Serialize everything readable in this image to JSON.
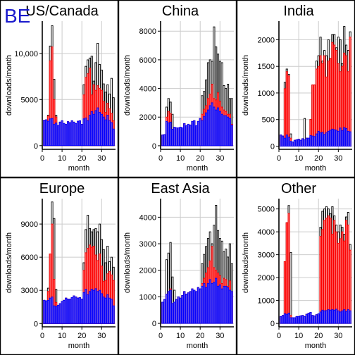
{
  "badge": "BE",
  "chart_data": [
    {
      "type": "bar",
      "title": "US/Canada",
      "xlabel": "month",
      "ylabel": "downloads/month",
      "xlim": [
        0,
        37
      ],
      "ylim": [
        -400,
        13500
      ],
      "xticks": [
        0,
        10,
        20,
        30
      ],
      "yticks": [
        0,
        5000,
        10000
      ],
      "ytick_labels": [
        "0",
        "5000",
        "10,000"
      ],
      "series": [
        {
          "name": "",
          "color": "#0000ff",
          "values": [
            2750,
            2800,
            2650,
            2900,
            2950,
            2300,
            2450,
            2200,
            2550,
            2700,
            2400,
            2300,
            2600,
            2500,
            2700,
            2550,
            2400,
            2650,
            2700,
            2300,
            2900,
            3000,
            2700,
            3300,
            3700,
            3400,
            3800,
            4100,
            3600,
            3400,
            3100,
            2800,
            3300,
            2700,
            2500,
            1800
          ]
        },
        {
          "name": "",
          "color": "#ff0000",
          "values": [
            2750,
            2800,
            3200,
            9200,
            10700,
            5000,
            3100,
            2200,
            2550,
            2700,
            2400,
            2300,
            2600,
            2500,
            2700,
            2550,
            2400,
            2650,
            2700,
            2300,
            5500,
            7400,
            7800,
            8400,
            5500,
            6600,
            6000,
            6500,
            6200,
            6000,
            4800,
            3600,
            4600,
            4000,
            3500,
            2700
          ]
        },
        {
          "name": "",
          "color": "#000000",
          "values": [
            2750,
            2800,
            3300,
            10800,
            13000,
            7200,
            3300,
            2200,
            2550,
            2700,
            2400,
            2300,
            2600,
            2500,
            2700,
            2550,
            2400,
            2650,
            2700,
            2300,
            6600,
            8600,
            9300,
            9500,
            9700,
            7000,
            9000,
            11100,
            8800,
            8200,
            6700,
            5800,
            6600,
            5600,
            7300,
            5200
          ]
        }
      ]
    },
    {
      "type": "bar",
      "title": "China",
      "xlabel": "month",
      "ylabel": "downloads/month",
      "xlim": [
        0,
        37
      ],
      "ylim": [
        -250,
        8700
      ],
      "xticks": [
        0,
        10,
        20,
        30
      ],
      "yticks": [
        0,
        2000,
        4000,
        6000,
        8000
      ],
      "ytick_labels": [
        "0",
        "2000",
        "4000",
        "6000",
        "8000"
      ],
      "series": [
        {
          "name": "",
          "color": "#0000ff",
          "values": [
            750,
            780,
            1700,
            1600,
            1650,
            1150,
            1300,
            1250,
            1250,
            1300,
            1250,
            1550,
            1400,
            1500,
            1450,
            1700,
            1750,
            1400,
            1700,
            1900,
            1750,
            2050,
            2300,
            2500,
            2800,
            3000,
            2700,
            2500,
            2650,
            2400,
            2200,
            2100,
            2100,
            2000,
            1900,
            1450
          ]
        },
        {
          "name": "",
          "color": "#ff0000",
          "values": [
            750,
            780,
            2000,
            2400,
            2250,
            1150,
            1300,
            1250,
            1250,
            1300,
            1250,
            1550,
            1400,
            1500,
            1450,
            1700,
            1750,
            1400,
            1700,
            1900,
            2200,
            2550,
            2800,
            3300,
            3600,
            4300,
            3300,
            3200,
            3700,
            3100,
            2700,
            2500,
            2400,
            2200,
            2200,
            1500
          ]
        },
        {
          "name": "",
          "color": "#000000",
          "values": [
            750,
            780,
            2700,
            3300,
            3050,
            2200,
            1300,
            1250,
            1250,
            1300,
            1250,
            1550,
            1400,
            1500,
            1450,
            1700,
            1750,
            1400,
            1700,
            1900,
            3500,
            3800,
            4600,
            5800,
            6000,
            5900,
            8300,
            6900,
            6400,
            5900,
            5800,
            4200,
            4000,
            4300,
            3300,
            3300
          ]
        }
      ]
    },
    {
      "type": "bar",
      "title": "India",
      "xlabel": "month",
      "ylabel": "downloads/month",
      "xlim": [
        0,
        37
      ],
      "ylim": [
        -60,
        2350
      ],
      "xticks": [
        0,
        10,
        20,
        30
      ],
      "yticks": [
        0,
        500,
        1000,
        1500,
        2000
      ],
      "ytick_labels": [
        "0",
        "500",
        "1000",
        "1500",
        "2000"
      ],
      "series": [
        {
          "name": "",
          "color": "#0000ff",
          "values": [
            210,
            190,
            150,
            210,
            170,
            90,
            80,
            110,
            120,
            130,
            110,
            140,
            120,
            150,
            150,
            200,
            190,
            180,
            230,
            280,
            250,
            260,
            220,
            250,
            280,
            300,
            320,
            310,
            300,
            280,
            340,
            290,
            350,
            330,
            280,
            270
          ]
        },
        {
          "name": "",
          "color": "#ff0000",
          "values": [
            210,
            190,
            1080,
            1400,
            1320,
            150,
            80,
            110,
            120,
            130,
            110,
            140,
            120,
            150,
            150,
            500,
            1150,
            1150,
            1450,
            1500,
            1700,
            1550,
            1700,
            1300,
            1600,
            1650,
            1950,
            1900,
            1800,
            1550,
            1400,
            1500,
            1750,
            1700,
            1400,
            2050
          ]
        },
        {
          "name": "",
          "color": "#000000",
          "values": [
            210,
            190,
            1200,
            1450,
            1350,
            230,
            80,
            110,
            120,
            130,
            110,
            140,
            520,
            150,
            150,
            500,
            1150,
            1150,
            1600,
            1700,
            2050,
            1600,
            1800,
            1700,
            2000,
            1650,
            2100,
            2100,
            1850,
            2050,
            2000,
            1550,
            2250,
            1900,
            1800,
            2150
          ]
        }
      ]
    },
    {
      "type": "bar",
      "title": "Europe",
      "xlabel": "month",
      "ylabel": "downloads/month",
      "xlim": [
        0,
        37
      ],
      "ylim": [
        -300,
        11300
      ],
      "xticks": [
        0,
        10,
        20,
        30
      ],
      "yticks": [
        0,
        3000,
        6000,
        9000
      ],
      "ytick_labels": [
        "0",
        "3000",
        "6000",
        "9000"
      ],
      "series": [
        {
          "name": "",
          "color": "#0000ff",
          "values": [
            2100,
            2050,
            2100,
            2300,
            2400,
            1600,
            1550,
            1650,
            1800,
            2000,
            2100,
            2300,
            2200,
            2200,
            2350,
            2500,
            2400,
            2300,
            2350,
            2200,
            2800,
            3100,
            2600,
            2900,
            3100,
            3000,
            3150,
            2900,
            3000,
            2700,
            2400,
            2300,
            2600,
            2300,
            2200,
            1600
          ]
        },
        {
          "name": "",
          "color": "#ff0000",
          "values": [
            2100,
            2050,
            2900,
            6300,
            9000,
            4000,
            1900,
            1650,
            1800,
            2000,
            2100,
            2300,
            2200,
            2200,
            2350,
            2500,
            2400,
            2300,
            2350,
            2200,
            4800,
            6400,
            6800,
            7100,
            6900,
            7000,
            6200,
            5700,
            6300,
            5200,
            3800,
            3900,
            4500,
            4700,
            4400,
            3900
          ]
        },
        {
          "name": "",
          "color": "#000000",
          "values": [
            2100,
            2050,
            3200,
            6300,
            11000,
            9500,
            3100,
            1650,
            1800,
            2000,
            2100,
            2300,
            2200,
            2200,
            2350,
            2500,
            2400,
            2300,
            2350,
            2200,
            5500,
            8500,
            9800,
            8600,
            8300,
            8500,
            8600,
            8300,
            9000,
            7600,
            6700,
            5500,
            7000,
            5600,
            6000,
            5100
          ]
        }
      ]
    },
    {
      "type": "bar",
      "title": "East Asia",
      "xlabel": "month",
      "ylabel": "downloads/month",
      "xlim": [
        0,
        37
      ],
      "ylim": [
        -130,
        4700
      ],
      "xticks": [
        0,
        10,
        20,
        30
      ],
      "yticks": [
        0,
        1000,
        2000,
        3000,
        4000
      ],
      "ytick_labels": [
        "0",
        "1000",
        "2000",
        "3000",
        "4000"
      ],
      "series": [
        {
          "name": "",
          "color": "#0000ff",
          "values": [
            800,
            900,
            1100,
            1200,
            1250,
            750,
            800,
            900,
            1000,
            950,
            1050,
            1200,
            1100,
            1150,
            1200,
            1300,
            1250,
            1200,
            1350,
            1300,
            1400,
            1500,
            1350,
            1500,
            1650,
            1500,
            1550,
            1700,
            1400,
            1450,
            1300,
            1400,
            1400,
            1350,
            1250,
            1200
          ]
        },
        {
          "name": "",
          "color": "#ff0000",
          "values": [
            800,
            900,
            1100,
            1200,
            1300,
            750,
            800,
            900,
            1000,
            950,
            1050,
            1200,
            1100,
            1150,
            1200,
            1300,
            1250,
            1200,
            1350,
            1300,
            1500,
            1700,
            1900,
            2100,
            2350,
            2900,
            2100,
            2000,
            1900,
            1800,
            1500,
            1700,
            1650,
            1400,
            1600,
            1200
          ]
        },
        {
          "name": "",
          "color": "#000000",
          "values": [
            800,
            900,
            2400,
            2650,
            3050,
            1750,
            1250,
            900,
            1000,
            950,
            1050,
            1200,
            1100,
            1150,
            1200,
            1300,
            1250,
            1200,
            1350,
            1300,
            2250,
            2600,
            2900,
            3200,
            3450,
            3000,
            3700,
            4450,
            3500,
            3200,
            3100,
            2700,
            2800,
            2500,
            3000,
            2250
          ]
        }
      ]
    },
    {
      "type": "bar",
      "title": "Other",
      "xlabel": "month",
      "ylabel": "downloads/month",
      "xlim": [
        0,
        37
      ],
      "ylim": [
        -150,
        5450
      ],
      "xticks": [
        0,
        10,
        20,
        30
      ],
      "yticks": [
        0,
        1000,
        2000,
        3000,
        4000,
        5000
      ],
      "ytick_labels": [
        "0",
        "1000",
        "2000",
        "3000",
        "4000",
        "5000"
      ],
      "series": [
        {
          "name": "",
          "color": "#0000ff",
          "values": [
            300,
            350,
            420,
            400,
            450,
            250,
            250,
            250,
            300,
            300,
            330,
            350,
            300,
            400,
            450,
            480,
            350,
            320,
            380,
            420,
            500,
            580,
            550,
            560,
            600,
            580,
            600,
            580,
            620,
            550,
            500,
            550,
            600,
            520,
            600,
            550
          ]
        },
        {
          "name": "",
          "color": "#ff0000",
          "values": [
            300,
            350,
            2700,
            4400,
            4800,
            350,
            250,
            250,
            300,
            300,
            330,
            350,
            300,
            400,
            450,
            480,
            350,
            320,
            380,
            420,
            3800,
            4100,
            4500,
            4600,
            4700,
            4600,
            3900,
            4500,
            4000,
            3500,
            3700,
            4000,
            3600,
            4500,
            4300,
            3200
          ]
        },
        {
          "name": "",
          "color": "#000000",
          "values": [
            300,
            350,
            2700,
            4400,
            5150,
            3100,
            250,
            250,
            300,
            300,
            330,
            350,
            300,
            400,
            450,
            480,
            350,
            320,
            380,
            420,
            4200,
            4900,
            5000,
            5100,
            5000,
            4800,
            5100,
            4700,
            4300,
            4000,
            4300,
            4200,
            3900,
            4650,
            4850,
            3450
          ]
        }
      ]
    }
  ]
}
